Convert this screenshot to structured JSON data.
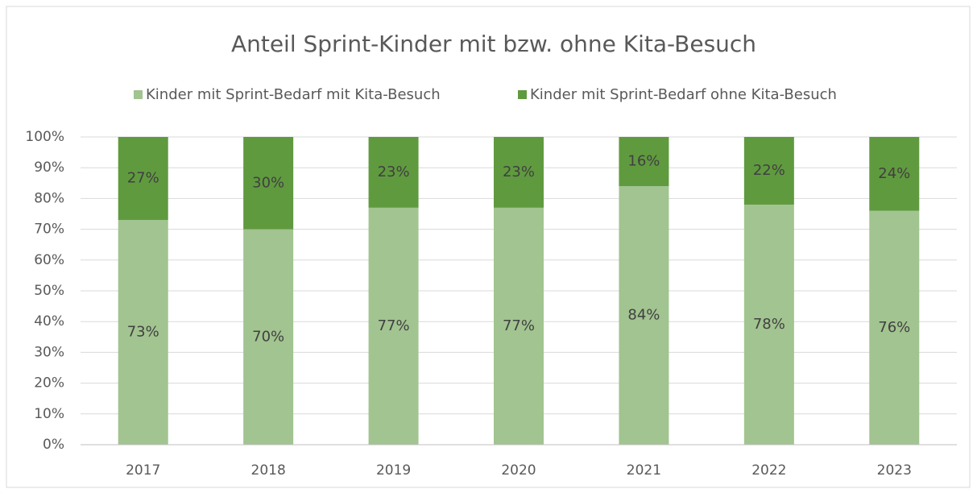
{
  "chart_data": {
    "type": "stacked_bar",
    "title": "Anteil Sprint-Kinder mit bzw. ohne Kita-Besuch",
    "categories": [
      "2017",
      "2018",
      "2019",
      "2020",
      "2021",
      "2022",
      "2023"
    ],
    "series": [
      {
        "name": "Kinder mit Sprint-Bedarf mit Kita-Besuch",
        "color": "#a2c490",
        "values": [
          73,
          70,
          77,
          77,
          84,
          78,
          76
        ],
        "value_labels": [
          "73%",
          "70%",
          "77%",
          "77%",
          "84%",
          "78%",
          "76%"
        ]
      },
      {
        "name": "Kinder mit Sprint-Bedarf ohne Kita-Besuch",
        "color": "#609a3f",
        "values": [
          27,
          30,
          23,
          23,
          16,
          22,
          24
        ],
        "value_labels": [
          "27%",
          "30%",
          "23%",
          "23%",
          "16%",
          "22%",
          "24%"
        ]
      }
    ],
    "ylim": [
      0,
      100
    ],
    "yticks": [
      {
        "value": 0,
        "label": "0%"
      },
      {
        "value": 10,
        "label": "10%"
      },
      {
        "value": 20,
        "label": "20%"
      },
      {
        "value": 30,
        "label": "30%"
      },
      {
        "value": 40,
        "label": "40%"
      },
      {
        "value": 50,
        "label": "50%"
      },
      {
        "value": 60,
        "label": "60%"
      },
      {
        "value": 70,
        "label": "70%"
      },
      {
        "value": 80,
        "label": "80%"
      },
      {
        "value": 90,
        "label": "90%"
      },
      {
        "value": 100,
        "label": "100%"
      }
    ],
    "grid": true,
    "legend": "top"
  }
}
